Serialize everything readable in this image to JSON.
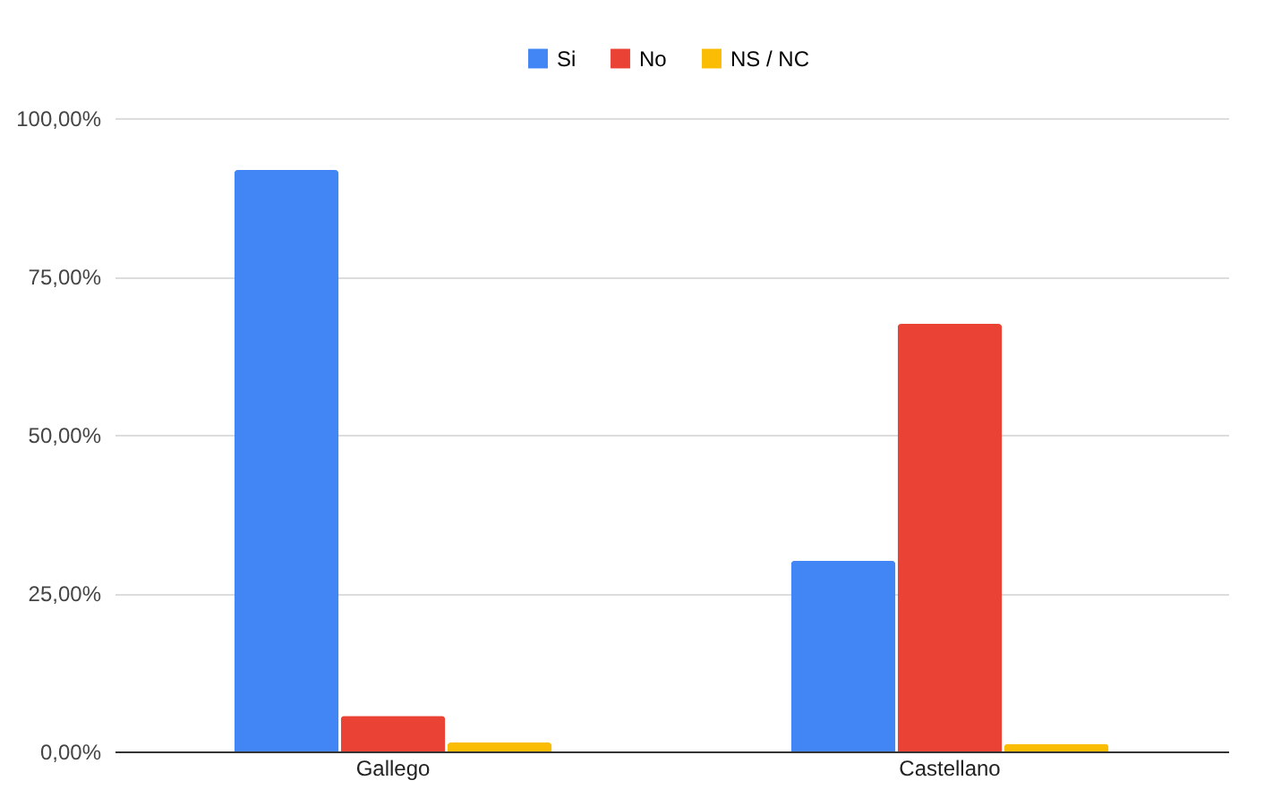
{
  "chart_data": {
    "type": "bar",
    "categories": [
      "Gallego",
      "Castellano"
    ],
    "series": [
      {
        "name": "Si",
        "color": "#4285f4",
        "values": [
          91.8,
          30.1
        ]
      },
      {
        "name": "No",
        "color": "#ea4335",
        "values": [
          5.6,
          67.5
        ]
      },
      {
        "name": "NS / NC",
        "color": "#fbbc04",
        "values": [
          1.4,
          1.2
        ]
      }
    ],
    "ylim": [
      0,
      100
    ],
    "yticks": [
      {
        "value": 0,
        "label": "0,00%"
      },
      {
        "value": 25,
        "label": "25,00%"
      },
      {
        "value": 50,
        "label": "50,00%"
      },
      {
        "value": 75,
        "label": "75,00%"
      },
      {
        "value": 100,
        "label": "100,00%"
      }
    ],
    "grid": "y",
    "legend": "top"
  }
}
